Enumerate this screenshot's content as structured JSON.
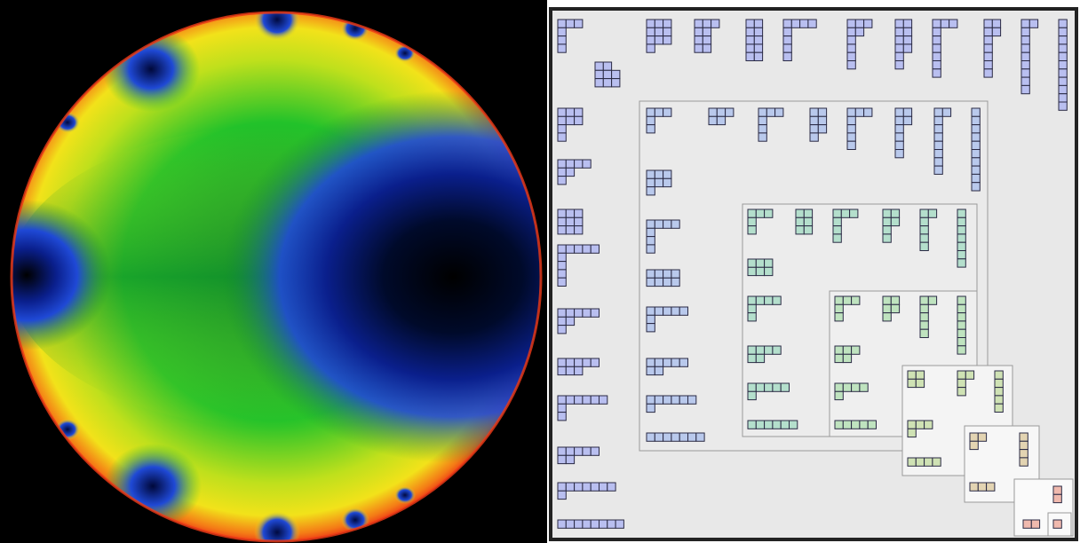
{
  "left_figure": {
    "kind": "disk-color-plot",
    "palette": [
      "#000000",
      "#0a1f8c",
      "#1f49d6",
      "#118c2a",
      "#22c22a",
      "#bfe01c",
      "#f2e21a",
      "#f47b16",
      "#ee3a16"
    ],
    "dark_lobes": [
      "left",
      "right",
      "top-left",
      "bottom-left",
      "top",
      "bottom"
    ]
  },
  "right_figure": {
    "kind": "nested-partition-diagram",
    "levels": [
      {
        "fill": "#b9bff0",
        "border": "#8a8a8a",
        "background": "#e8e8e8"
      },
      {
        "fill": "#b9c9ec",
        "border": "#9a9a9a",
        "background": "#eaeaea"
      },
      {
        "fill": "#b4dfcc",
        "border": "#9a9a9a",
        "background": "#ececec"
      },
      {
        "fill": "#bfe3bf",
        "border": "#9a9a9a",
        "background": "#efefef"
      },
      {
        "fill": "#cfe2b4",
        "border": "#9a9a9a",
        "background": "#f4f4f4"
      },
      {
        "fill": "#e3d4b2",
        "border": "#9a9a9a",
        "background": "#f7f7f7"
      },
      {
        "fill": "#f0b9ae",
        "border": "#9a9a9a",
        "background": "#fafafa"
      }
    ]
  }
}
